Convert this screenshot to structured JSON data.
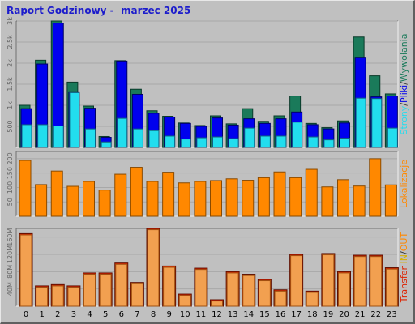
{
  "title": "Raport Godzinowy -  marzec 2025",
  "colors": {
    "background": "#c0c0c0",
    "title": "#1c1ccc",
    "hits": "#1a7a5a",
    "files": "#0000ee",
    "pages": "#22ddee",
    "visits": "#ff8800",
    "kbytes": "#dd2200",
    "kbytes_fill": "#f2a050",
    "axis_text": "#666666"
  },
  "chart_data": [
    {
      "type": "bar",
      "categories": [
        "0",
        "1",
        "2",
        "3",
        "4",
        "5",
        "6",
        "7",
        "8",
        "9",
        "10",
        "11",
        "12",
        "13",
        "14",
        "15",
        "16",
        "17",
        "18",
        "19",
        "20",
        "21",
        "22",
        "23"
      ],
      "ylabel_parts": [
        "Strony",
        "/",
        "Pliki",
        "/",
        "Wywołania"
      ],
      "ytick_labels": [
        "500",
        "1k",
        "1.5k",
        "2k",
        "2.5k",
        "3k"
      ],
      "ytick_values": [
        500,
        1000,
        1500,
        2000,
        2500,
        3000
      ],
      "ylim": [
        0,
        3000
      ],
      "series": [
        {
          "name": "Wywołania",
          "values": [
            1000,
            2070,
            3000,
            1550,
            980,
            260,
            2060,
            1380,
            870,
            740,
            580,
            520,
            750,
            560,
            920,
            620,
            750,
            1220,
            570,
            470,
            630,
            2620,
            1700,
            1270
          ]
        },
        {
          "name": "Pliki",
          "values": [
            920,
            1980,
            2950,
            1320,
            930,
            240,
            2050,
            1260,
            810,
            720,
            570,
            500,
            700,
            530,
            680,
            570,
            680,
            840,
            540,
            440,
            580,
            2140,
            1200,
            1220
          ]
        },
        {
          "name": "Strony",
          "values": [
            540,
            540,
            510,
            1300,
            440,
            130,
            690,
            440,
            400,
            270,
            200,
            230,
            250,
            210,
            460,
            270,
            270,
            600,
            250,
            180,
            220,
            1170,
            1160,
            460
          ]
        }
      ]
    },
    {
      "type": "bar",
      "categories": [
        "0",
        "1",
        "2",
        "3",
        "4",
        "5",
        "6",
        "7",
        "8",
        "9",
        "10",
        "11",
        "12",
        "13",
        "14",
        "15",
        "16",
        "17",
        "18",
        "19",
        "20",
        "21",
        "22",
        "23"
      ],
      "ylabel": "Lokalizacje",
      "ytick_labels": [
        "50",
        "100",
        "150",
        "200"
      ],
      "ytick_values": [
        50,
        100,
        150,
        200
      ],
      "ylim": [
        0,
        225
      ],
      "series": [
        {
          "name": "Lokalizacje",
          "values": [
            194,
            110,
            157,
            104,
            121,
            91,
            146,
            170,
            121,
            153,
            116,
            121,
            124,
            130,
            125,
            134,
            154,
            134,
            163,
            102,
            127,
            105,
            200,
            109
          ]
        }
      ]
    },
    {
      "type": "bar",
      "categories": [
        "0",
        "1",
        "2",
        "3",
        "4",
        "5",
        "6",
        "7",
        "8",
        "9",
        "10",
        "11",
        "12",
        "13",
        "14",
        "15",
        "16",
        "17",
        "18",
        "19",
        "20",
        "21",
        "22",
        "23"
      ],
      "ylabel_parts": [
        "Transfer",
        "IN",
        "/",
        "OUT"
      ],
      "ytick_labels": [
        "40M",
        "80M",
        "120M",
        "160M"
      ],
      "ytick_values": [
        40,
        80,
        120,
        160
      ],
      "ylim": [
        0,
        180
      ],
      "series": [
        {
          "name": "Transfer",
          "values": [
            168,
            47,
            50,
            47,
            77,
            77,
            100,
            55,
            180,
            93,
            28,
            88,
            15,
            80,
            74,
            62,
            38,
            120,
            35,
            122,
            80,
            118,
            118,
            89
          ]
        }
      ]
    }
  ],
  "xtick_labels": [
    "0",
    "1",
    "2",
    "3",
    "4",
    "5",
    "6",
    "7",
    "8",
    "9",
    "10",
    "11",
    "12",
    "13",
    "14",
    "15",
    "16",
    "17",
    "18",
    "19",
    "20",
    "21",
    "22",
    "23"
  ]
}
